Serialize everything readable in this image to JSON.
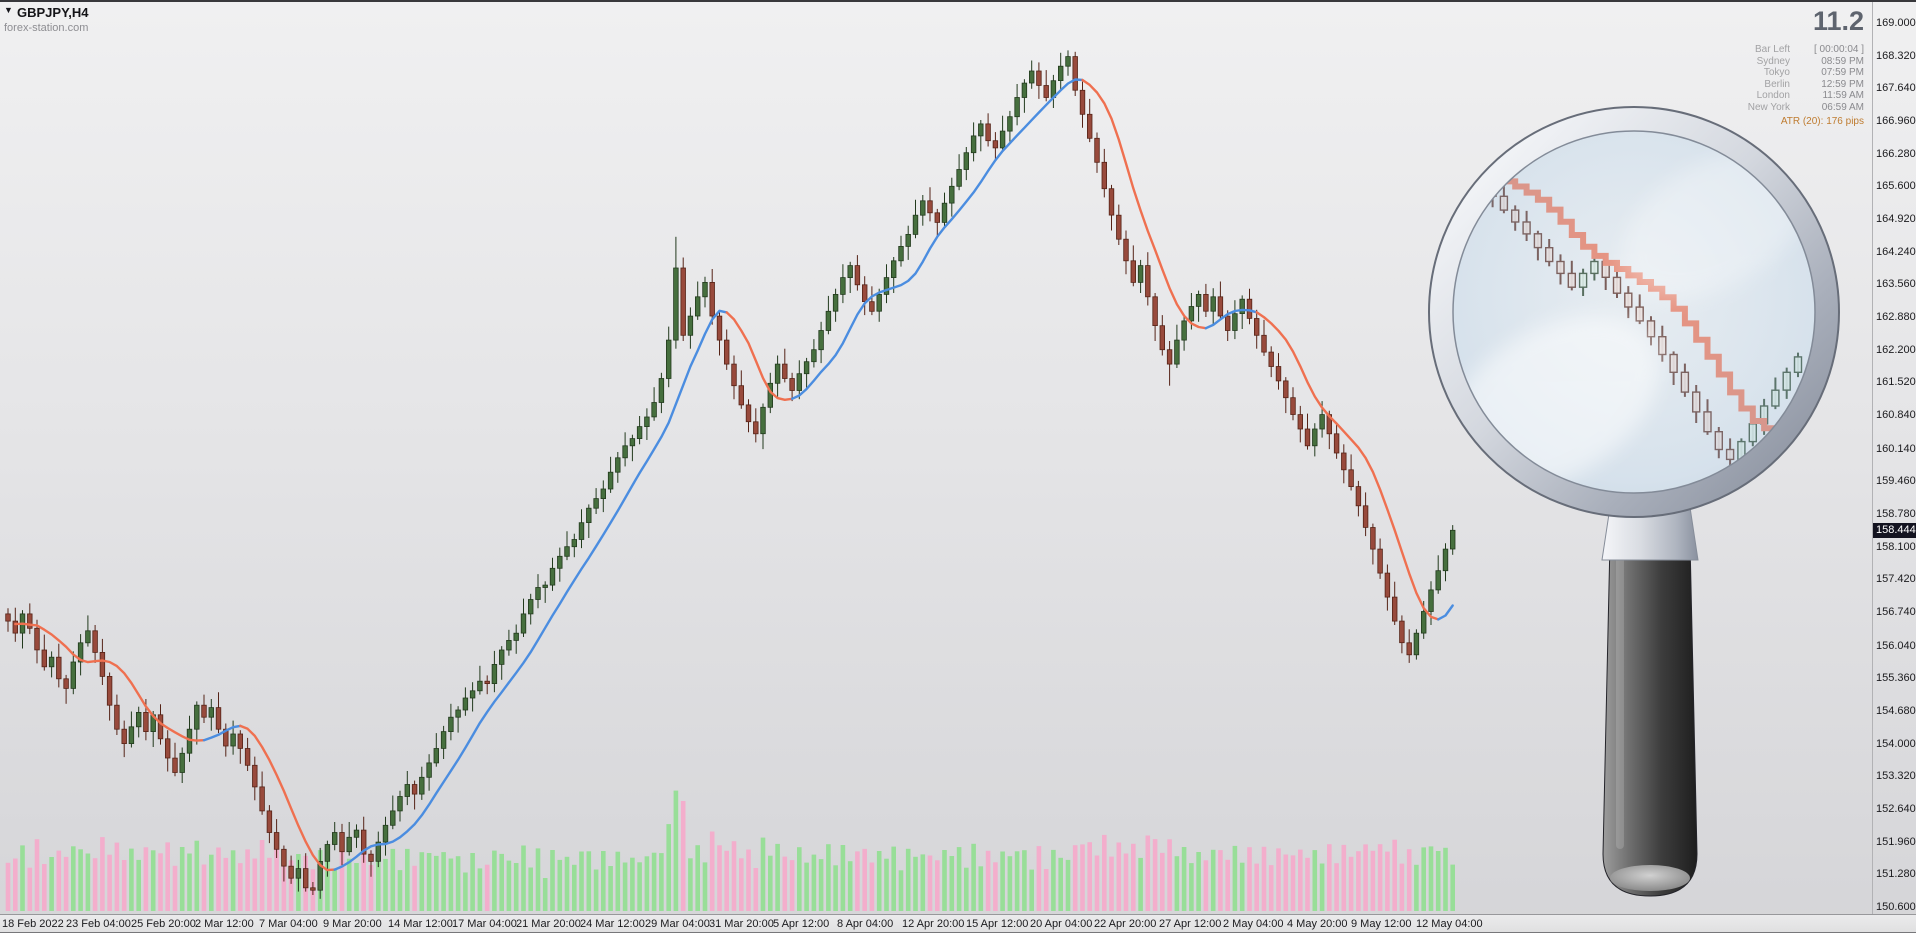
{
  "window": {
    "symbol_label": "GBPJPY,H4",
    "watermark": "forex-station.com",
    "expand_icon": "▼"
  },
  "indicators": {
    "big_number": "11.2",
    "clock_rows": [
      {
        "label": "Bar Left",
        "value": "[ 00:00:04 ]"
      },
      {
        "label": "Sydney",
        "value": "08:59 PM"
      },
      {
        "label": "Tokyo",
        "value": "07:59 PM"
      },
      {
        "label": "Berlin",
        "value": "12:59 PM"
      },
      {
        "label": "London",
        "value": "11:59 AM"
      },
      {
        "label": "New York",
        "value": "06:59 AM"
      }
    ],
    "atr_label": "ATR (20): 176 pips"
  },
  "colors": {
    "candle_up": "#466f3e",
    "candle_up_border": "#223a1d",
    "candle_down": "#984a3c",
    "candle_down_border": "#552317",
    "ma_up": "#4b8de0",
    "ma_down": "#ef7050",
    "vol_up": "#93de93",
    "vol_down": "#f5aacb",
    "badge_bg": "#131320",
    "badge_text": "#ffffff",
    "atr_text": "#bf7c30",
    "big_number_text": "#5e646e"
  },
  "chart_data": {
    "type": "candlestick",
    "symbol_timeframe": "GBPJPY,H4",
    "y_range": [
      150.6,
      169.0
    ],
    "last_price": "158.444",
    "y_tick_labels": [
      "169.000",
      "168.320",
      "167.640",
      "166.960",
      "166.280",
      "165.600",
      "164.920",
      "164.240",
      "163.560",
      "162.880",
      "162.200",
      "161.520",
      "160.840",
      "160.140",
      "159.460",
      "158.780",
      "158.100",
      "157.420",
      "156.740",
      "156.040",
      "155.360",
      "154.680",
      "154.000",
      "153.320",
      "152.640",
      "151.960",
      "151.280",
      "150.600"
    ],
    "x_tick_labels": [
      "18 Feb 2022",
      "23 Feb 04:00",
      "25 Feb 20:00",
      "2 Mar 12:00",
      "7 Mar 04:00",
      "9 Mar 20:00",
      "14 Mar 12:00",
      "17 Mar 04:00",
      "21 Mar 20:00",
      "24 Mar 12:00",
      "29 Mar 04:00",
      "31 Mar 20:00",
      "5 Apr 12:00",
      "8 Apr 04:00",
      "12 Apr 20:00",
      "15 Apr 12:00",
      "20 Apr 04:00",
      "22 Apr 20:00",
      "27 Apr 12:00",
      "2 May 04:00",
      "4 May 20:00",
      "9 May 12:00",
      "12 May 04:00"
    ],
    "candles": [
      [
        156.7,
        156.82,
        156.33,
        156.55
      ],
      [
        156.55,
        156.83,
        156.12,
        156.3
      ],
      [
        156.3,
        156.78,
        155.98,
        156.7
      ],
      [
        156.7,
        156.92,
        156.28,
        156.4
      ],
      [
        156.4,
        156.58,
        155.67,
        155.95
      ],
      [
        155.95,
        156.27,
        155.52,
        155.6
      ],
      [
        155.6,
        155.92,
        155.38,
        155.8
      ],
      [
        155.8,
        156.08,
        155.17,
        155.35
      ],
      [
        155.35,
        155.43,
        154.83,
        155.15
      ],
      [
        155.15,
        155.92,
        155.03,
        155.7
      ],
      [
        155.7,
        156.28,
        155.42,
        156.1
      ],
      [
        156.1,
        156.67,
        156.02,
        156.35
      ],
      [
        156.35,
        156.47,
        155.68,
        155.9
      ],
      [
        155.9,
        156.18,
        155.22,
        155.4
      ],
      [
        155.4,
        155.48,
        154.48,
        154.8
      ],
      [
        154.8,
        155.02,
        154.18,
        154.3
      ],
      [
        154.3,
        154.48,
        153.72,
        154.0
      ],
      [
        154.0,
        154.67,
        153.92,
        154.35
      ],
      [
        154.35,
        154.77,
        154.13,
        154.65
      ],
      [
        154.65,
        154.93,
        154.07,
        154.25
      ],
      [
        154.25,
        154.68,
        153.93,
        154.6
      ],
      [
        154.6,
        154.82,
        153.98,
        154.1
      ],
      [
        154.1,
        154.28,
        153.42,
        153.7
      ],
      [
        153.7,
        154.02,
        153.32,
        153.4
      ],
      [
        153.4,
        153.92,
        153.18,
        153.8
      ],
      [
        153.8,
        154.58,
        153.62,
        154.3
      ],
      [
        154.3,
        154.88,
        153.98,
        154.8
      ],
      [
        154.8,
        155.02,
        154.43,
        154.55
      ],
      [
        154.55,
        154.93,
        154.27,
        154.75
      ],
      [
        154.75,
        155.07,
        154.22,
        154.3
      ],
      [
        154.3,
        154.42,
        153.73,
        153.95
      ],
      [
        153.95,
        154.48,
        153.77,
        154.2
      ],
      [
        154.2,
        154.28,
        153.58,
        153.9
      ],
      [
        153.9,
        154.12,
        153.43,
        153.55
      ],
      [
        153.55,
        153.73,
        152.82,
        153.1
      ],
      [
        153.1,
        153.42,
        152.52,
        152.6
      ],
      [
        152.6,
        152.72,
        151.93,
        152.15
      ],
      [
        152.15,
        152.43,
        151.62,
        151.8
      ],
      [
        151.8,
        151.88,
        151.13,
        151.45
      ],
      [
        151.45,
        151.67,
        151.08,
        151.2
      ],
      [
        151.2,
        151.58,
        150.92,
        151.4
      ],
      [
        151.4,
        151.72,
        150.92,
        151.0
      ],
      [
        151.0,
        151.12,
        150.85,
        150.95
      ],
      [
        150.95,
        151.83,
        150.77,
        151.55
      ],
      [
        151.55,
        151.98,
        151.23,
        151.9
      ],
      [
        151.9,
        152.37,
        151.78,
        152.15
      ],
      [
        152.15,
        152.33,
        151.47,
        151.75
      ],
      [
        151.75,
        152.37,
        151.67,
        152.05
      ],
      [
        152.05,
        152.32,
        151.83,
        152.2
      ],
      [
        152.2,
        152.48,
        151.52,
        151.7
      ],
      [
        151.7,
        151.78,
        151.23,
        151.55
      ],
      [
        151.55,
        152.17,
        151.43,
        151.95
      ],
      [
        151.95,
        152.48,
        151.67,
        152.3
      ],
      [
        152.3,
        152.92,
        152.22,
        152.6
      ],
      [
        152.6,
        153.02,
        152.38,
        152.9
      ],
      [
        152.9,
        153.43,
        152.72,
        153.15
      ],
      [
        153.15,
        153.23,
        152.63,
        152.95
      ],
      [
        152.95,
        153.52,
        152.83,
        153.3
      ],
      [
        153.3,
        153.78,
        153.02,
        153.6
      ],
      [
        153.6,
        154.22,
        153.52,
        153.9
      ],
      [
        153.9,
        154.37,
        153.68,
        154.25
      ],
      [
        154.25,
        154.83,
        154.07,
        154.55
      ],
      [
        154.55,
        154.78,
        154.23,
        154.7
      ],
      [
        154.7,
        155.17,
        154.58,
        154.95
      ],
      [
        154.95,
        155.28,
        154.67,
        155.1
      ],
      [
        155.1,
        155.62,
        155.02,
        155.3
      ],
      [
        155.3,
        155.42,
        155.03,
        155.25
      ],
      [
        155.25,
        155.93,
        155.07,
        155.65
      ],
      [
        155.65,
        156.03,
        155.33,
        155.95
      ],
      [
        155.95,
        156.37,
        155.83,
        156.15
      ],
      [
        156.15,
        156.48,
        155.87,
        156.3
      ],
      [
        156.3,
        157.02,
        156.22,
        156.7
      ],
      [
        156.7,
        157.12,
        156.48,
        157.0
      ],
      [
        157.0,
        157.53,
        156.82,
        157.25
      ],
      [
        157.25,
        157.38,
        156.93,
        157.3
      ],
      [
        157.3,
        157.87,
        157.18,
        157.65
      ],
      [
        157.65,
        158.08,
        157.37,
        157.9
      ],
      [
        157.9,
        158.42,
        157.82,
        158.1
      ],
      [
        158.1,
        158.37,
        157.88,
        158.25
      ],
      [
        158.25,
        158.88,
        158.07,
        158.6
      ],
      [
        158.6,
        158.98,
        158.28,
        158.9
      ],
      [
        158.9,
        159.32,
        158.78,
        159.1
      ],
      [
        159.1,
        159.48,
        158.82,
        159.3
      ],
      [
        159.3,
        159.97,
        159.22,
        159.65
      ],
      [
        159.65,
        160.07,
        159.43,
        159.95
      ],
      [
        159.95,
        160.48,
        159.77,
        160.2
      ],
      [
        160.2,
        160.43,
        159.88,
        160.35
      ],
      [
        160.35,
        160.82,
        160.23,
        160.6
      ],
      [
        160.6,
        160.98,
        160.32,
        160.8
      ],
      [
        160.8,
        161.42,
        160.72,
        161.1
      ],
      [
        161.1,
        161.72,
        160.88,
        161.6
      ],
      [
        161.6,
        162.68,
        161.42,
        162.4
      ],
      [
        162.4,
        164.55,
        162.22,
        163.9
      ],
      [
        163.9,
        164.12,
        162.38,
        162.5
      ],
      [
        162.5,
        163.08,
        162.22,
        162.9
      ],
      [
        162.9,
        163.62,
        162.82,
        163.3
      ],
      [
        163.3,
        163.72,
        163.08,
        163.6
      ],
      [
        163.6,
        163.88,
        162.72,
        162.9
      ],
      [
        162.9,
        162.98,
        162.08,
        162.4
      ],
      [
        162.4,
        162.62,
        161.78,
        161.9
      ],
      [
        161.9,
        162.08,
        161.17,
        161.45
      ],
      [
        161.45,
        161.77,
        160.97,
        161.05
      ],
      [
        161.05,
        161.17,
        160.48,
        160.7
      ],
      [
        160.7,
        160.98,
        160.27,
        160.45
      ],
      [
        160.45,
        161.08,
        160.13,
        161.0
      ],
      [
        161.0,
        161.72,
        160.88,
        161.5
      ],
      [
        161.5,
        162.08,
        161.22,
        161.9
      ],
      [
        161.9,
        162.22,
        161.52,
        161.6
      ],
      [
        161.6,
        161.72,
        161.13,
        161.35
      ],
      [
        161.35,
        161.98,
        161.17,
        161.7
      ],
      [
        161.7,
        162.03,
        161.38,
        161.95
      ],
      [
        161.95,
        162.42,
        161.83,
        162.2
      ],
      [
        162.2,
        162.78,
        161.92,
        162.6
      ],
      [
        162.6,
        163.32,
        162.52,
        163.0
      ],
      [
        163.0,
        163.47,
        162.78,
        163.35
      ],
      [
        163.35,
        163.98,
        163.17,
        163.7
      ],
      [
        163.7,
        164.03,
        163.38,
        163.95
      ],
      [
        163.95,
        164.17,
        163.43,
        163.55
      ],
      [
        163.55,
        163.73,
        162.92,
        163.2
      ],
      [
        163.2,
        163.52,
        162.92,
        163.0
      ],
      [
        163.0,
        163.47,
        162.78,
        163.35
      ],
      [
        163.35,
        163.98,
        163.17,
        163.7
      ],
      [
        163.7,
        164.13,
        163.38,
        164.05
      ],
      [
        164.05,
        164.57,
        163.93,
        164.35
      ],
      [
        164.35,
        164.78,
        164.07,
        164.6
      ],
      [
        164.6,
        165.32,
        164.52,
        165.0
      ],
      [
        165.0,
        165.42,
        164.78,
        165.3
      ],
      [
        165.3,
        165.58,
        164.87,
        165.05
      ],
      [
        165.05,
        165.13,
        164.53,
        164.85
      ],
      [
        164.85,
        165.47,
        164.73,
        165.25
      ],
      [
        165.25,
        165.78,
        164.97,
        165.6
      ],
      [
        165.6,
        166.27,
        165.52,
        165.95
      ],
      [
        165.95,
        166.42,
        165.73,
        166.3
      ],
      [
        166.3,
        166.93,
        166.12,
        166.65
      ],
      [
        166.65,
        166.98,
        166.33,
        166.9
      ],
      [
        166.9,
        167.12,
        166.43,
        166.55
      ],
      [
        166.55,
        166.73,
        166.12,
        166.4
      ],
      [
        166.4,
        167.07,
        166.32,
        166.75
      ],
      [
        166.75,
        167.17,
        166.53,
        167.05
      ],
      [
        167.05,
        167.73,
        166.87,
        167.45
      ],
      [
        167.45,
        167.83,
        167.13,
        167.75
      ],
      [
        167.75,
        168.22,
        167.63,
        168.0
      ],
      [
        168.0,
        168.18,
        167.42,
        167.7
      ],
      [
        167.7,
        168.02,
        167.37,
        167.45
      ],
      [
        167.45,
        167.92,
        167.23,
        167.8
      ],
      [
        167.8,
        168.38,
        167.62,
        168.1
      ],
      [
        168.1,
        168.43,
        167.9,
        168.3
      ],
      [
        168.3,
        168.4,
        167.48,
        167.6
      ],
      [
        167.6,
        167.78,
        166.82,
        167.1
      ],
      [
        167.1,
        167.42,
        166.52,
        166.6
      ],
      [
        166.6,
        166.72,
        165.88,
        166.1
      ],
      [
        166.1,
        166.38,
        165.37,
        165.55
      ],
      [
        165.55,
        165.63,
        164.68,
        165.0
      ],
      [
        165.0,
        165.22,
        164.38,
        164.5
      ],
      [
        164.5,
        164.68,
        163.77,
        164.05
      ],
      [
        164.05,
        164.37,
        163.52,
        163.6
      ],
      [
        163.6,
        164.07,
        163.38,
        163.95
      ],
      [
        163.95,
        164.23,
        163.12,
        163.3
      ],
      [
        163.3,
        163.38,
        162.38,
        162.7
      ],
      [
        162.7,
        162.92,
        162.08,
        162.2
      ],
      [
        162.2,
        162.38,
        161.45,
        161.9
      ],
      [
        161.9,
        162.72,
        161.82,
        162.4
      ],
      [
        162.4,
        162.92,
        162.18,
        162.8
      ],
      [
        162.8,
        163.38,
        162.62,
        163.1
      ],
      [
        163.1,
        163.43,
        162.78,
        163.35
      ],
      [
        163.35,
        163.57,
        162.88,
        163.0
      ],
      [
        163.0,
        163.48,
        162.72,
        163.3
      ],
      [
        163.3,
        163.62,
        162.82,
        162.9
      ],
      [
        162.9,
        163.02,
        162.38,
        162.6
      ],
      [
        162.6,
        163.23,
        162.42,
        162.95
      ],
      [
        162.95,
        163.33,
        162.63,
        163.25
      ],
      [
        163.25,
        163.47,
        162.73,
        162.85
      ],
      [
        162.85,
        163.03,
        162.22,
        162.5
      ],
      [
        162.5,
        162.82,
        162.07,
        162.15
      ],
      [
        162.15,
        162.27,
        161.63,
        161.85
      ],
      [
        161.85,
        162.13,
        161.37,
        161.55
      ],
      [
        161.55,
        161.63,
        160.88,
        161.2
      ],
      [
        161.2,
        161.42,
        160.73,
        160.85
      ],
      [
        160.85,
        161.03,
        160.27,
        160.55
      ],
      [
        160.55,
        160.87,
        160.12,
        160.2
      ],
      [
        160.2,
        160.67,
        159.98,
        160.55
      ],
      [
        160.55,
        161.13,
        160.37,
        160.85
      ],
      [
        160.85,
        160.93,
        160.13,
        160.45
      ],
      [
        160.45,
        160.67,
        159.93,
        160.05
      ],
      [
        160.05,
        160.23,
        159.42,
        159.7
      ],
      [
        159.7,
        160.02,
        159.27,
        159.35
      ],
      [
        159.35,
        159.47,
        158.73,
        158.95
      ],
      [
        158.95,
        159.23,
        158.32,
        158.5
      ],
      [
        158.5,
        158.58,
        157.73,
        158.05
      ],
      [
        158.05,
        158.27,
        157.43,
        157.55
      ],
      [
        157.55,
        157.73,
        156.77,
        157.05
      ],
      [
        157.05,
        157.37,
        156.47,
        156.55
      ],
      [
        156.55,
        156.67,
        155.88,
        156.1
      ],
      [
        156.1,
        156.38,
        155.68,
        155.85
      ],
      [
        155.85,
        156.38,
        155.75,
        156.3
      ],
      [
        156.3,
        156.97,
        156.18,
        156.75
      ],
      [
        156.75,
        157.38,
        156.47,
        157.2
      ],
      [
        157.2,
        157.92,
        157.12,
        157.6
      ],
      [
        157.6,
        158.17,
        157.38,
        158.05
      ],
      [
        158.05,
        158.55,
        157.93,
        158.44
      ]
    ]
  }
}
